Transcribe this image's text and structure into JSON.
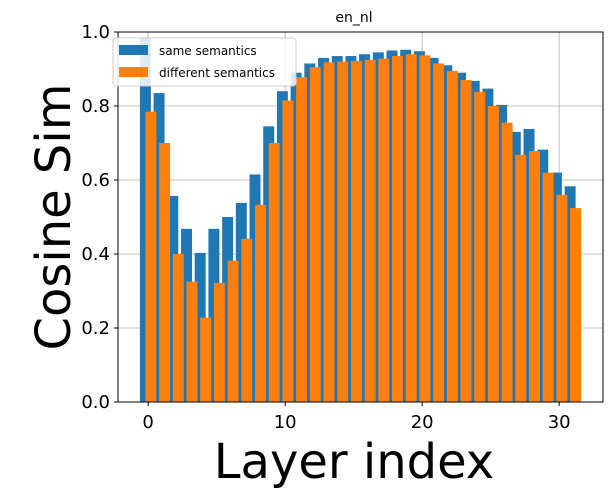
{
  "chart_data": {
    "type": "bar",
    "title": "en_nl",
    "xlabel": "Layer index",
    "ylabel": "Cosine Sim",
    "xlim": [
      -2.2,
      33.2
    ],
    "ylim": [
      0.0,
      1.0
    ],
    "xticks": [
      0,
      10,
      20,
      30
    ],
    "yticks": [
      0.0,
      0.2,
      0.4,
      0.6,
      0.8,
      1.0
    ],
    "xtick_labels": [
      "0",
      "10",
      "20",
      "30"
    ],
    "ytick_labels": [
      "0.0",
      "0.2",
      "0.4",
      "0.6",
      "0.8",
      "1.0"
    ],
    "grid": true,
    "legend_position": "upper-left",
    "x": [
      0,
      1,
      2,
      3,
      4,
      5,
      6,
      7,
      8,
      9,
      10,
      11,
      12,
      13,
      14,
      15,
      16,
      17,
      18,
      19,
      20,
      21,
      22,
      23,
      24,
      25,
      26,
      27,
      28,
      29,
      30,
      31
    ],
    "series": [
      {
        "name": "same semantics",
        "color": "#1f77b4",
        "offset": -0.2,
        "values": [
          0.985,
          0.835,
          0.557,
          0.468,
          0.403,
          0.468,
          0.5,
          0.538,
          0.615,
          0.745,
          0.84,
          0.89,
          0.915,
          0.93,
          0.935,
          0.935,
          0.94,
          0.945,
          0.95,
          0.952,
          0.948,
          0.93,
          0.91,
          0.89,
          0.868,
          0.847,
          0.803,
          0.73,
          0.738,
          0.682,
          0.62,
          0.583
        ]
      },
      {
        "name": "different semantics",
        "color": "#ff7f0e",
        "offset": 0.2,
        "values": [
          0.785,
          0.7,
          0.4,
          0.325,
          0.228,
          0.322,
          0.382,
          0.441,
          0.533,
          0.7,
          0.815,
          0.878,
          0.905,
          0.918,
          0.92,
          0.922,
          0.925,
          0.928,
          0.935,
          0.94,
          0.937,
          0.915,
          0.895,
          0.87,
          0.838,
          0.8,
          0.755,
          0.668,
          0.678,
          0.62,
          0.56,
          0.524
        ]
      }
    ],
    "bar_width": 0.8
  }
}
